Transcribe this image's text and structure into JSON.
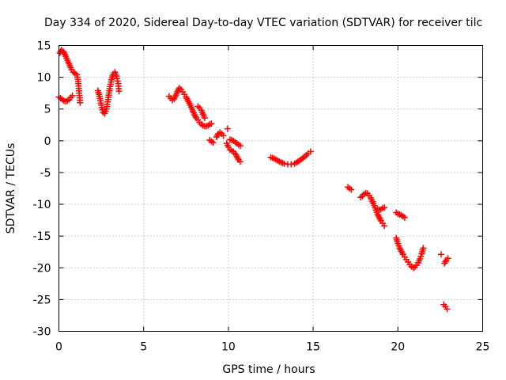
{
  "chart_data": {
    "type": "scatter",
    "title": "Day 334 of 2020, Sidereal Day-to-day VTEC variation (SDTVAR) for receiver tilc",
    "xlabel": "GPS time / hours",
    "ylabel": "SDTVAR / TECUs",
    "xlim": [
      0,
      25
    ],
    "ylim": [
      -30,
      15
    ],
    "xticks": [
      0,
      5,
      10,
      15,
      20,
      25
    ],
    "yticks": [
      15,
      10,
      5,
      0,
      -5,
      -10,
      -15,
      -20,
      -25,
      -30
    ],
    "xtick_labels": [
      "0",
      "5",
      "10",
      "15",
      "20",
      "25"
    ],
    "ytick_labels": [
      "15",
      "10",
      "5",
      "0",
      "-5",
      "-10",
      "-15",
      "-20",
      "-25",
      "-30"
    ],
    "grid": true,
    "marker": "plus",
    "color": "#ff0000",
    "segments": [
      {
        "x": [
          0.0,
          0.1,
          0.2,
          0.3,
          0.4,
          0.5,
          0.6,
          0.7,
          0.8
        ],
        "y": [
          6.9,
          6.7,
          6.5,
          6.3,
          6.2,
          6.3,
          6.5,
          6.8,
          7.1
        ]
      },
      {
        "x": [
          0.05,
          0.15,
          0.25,
          0.35,
          0.45,
          0.55,
          0.65,
          0.75,
          0.85,
          0.95,
          1.05,
          1.1,
          1.15,
          1.2,
          1.25
        ],
        "y": [
          13.8,
          14.3,
          14.1,
          13.6,
          13.0,
          12.4,
          11.8,
          11.2,
          10.8,
          10.6,
          10.4,
          10.0,
          9.0,
          7.5,
          6.0
        ]
      },
      {
        "x": [
          2.3,
          2.4,
          2.5,
          2.6,
          2.7,
          2.8,
          2.9,
          3.0,
          3.1,
          3.2,
          3.3,
          3.4,
          3.5,
          3.55
        ],
        "y": [
          7.9,
          7.0,
          5.6,
          4.5,
          4.3,
          5.0,
          6.5,
          8.2,
          9.6,
          10.5,
          10.8,
          10.2,
          9.0,
          7.8
        ]
      },
      {
        "x": [
          6.5,
          6.6,
          6.7,
          6.8,
          6.9,
          7.0,
          7.1,
          7.2,
          7.3,
          7.4,
          7.5,
          7.6,
          7.7,
          7.8,
          7.9,
          8.0,
          8.1,
          8.2,
          8.3,
          8.4,
          8.5,
          8.6,
          8.7,
          8.8,
          8.9,
          9.0
        ],
        "y": [
          7.0,
          6.7,
          6.4,
          6.6,
          7.2,
          7.8,
          8.3,
          8.1,
          7.7,
          7.3,
          6.9,
          6.4,
          5.9,
          5.3,
          4.7,
          4.1,
          3.6,
          3.3,
          2.9,
          2.6,
          2.4,
          2.3,
          2.3,
          2.4,
          2.6,
          2.7
        ]
      },
      {
        "x": [
          8.2,
          8.3,
          8.4,
          8.5,
          8.6
        ],
        "y": [
          5.4,
          5.2,
          4.8,
          4.2,
          3.6
        ]
      },
      {
        "x": [
          8.9,
          9.0,
          9.1
        ],
        "y": [
          0.1,
          -0.1,
          -0.3
        ]
      },
      {
        "x": [
          9.3,
          9.4,
          9.5,
          9.6,
          9.7
        ],
        "y": [
          0.6,
          1.1,
          1.3,
          1.1,
          0.8
        ]
      },
      {
        "x": [
          9.95
        ],
        "y": [
          1.9
        ]
      },
      {
        "x": [
          9.9,
          10.0,
          10.1,
          10.2,
          10.3,
          10.4,
          10.5,
          10.6,
          10.7
        ],
        "y": [
          -0.4,
          -1.0,
          -1.4,
          -1.6,
          -1.7,
          -2.0,
          -2.5,
          -3.0,
          -3.3
        ]
      },
      {
        "x": [
          10.1,
          10.3,
          10.5,
          10.7
        ],
        "y": [
          0.2,
          0.0,
          -0.4,
          -0.8
        ]
      },
      {
        "x": [
          12.5,
          12.7,
          12.9,
          13.1,
          13.3,
          13.5,
          13.7,
          13.9,
          14.1,
          14.3,
          14.5,
          14.7,
          14.85
        ],
        "y": [
          -2.6,
          -2.8,
          -3.1,
          -3.4,
          -3.6,
          -3.7,
          -3.7,
          -3.6,
          -3.3,
          -2.9,
          -2.5,
          -2.0,
          -1.7
        ]
      },
      {
        "x": [
          17.05,
          17.15,
          17.25
        ],
        "y": [
          -7.3,
          -7.5,
          -7.7
        ]
      },
      {
        "x": [
          17.8,
          17.9,
          18.0,
          18.1,
          18.2,
          18.3,
          18.4,
          18.5,
          18.6,
          18.7,
          18.8,
          18.9,
          19.0,
          19.1,
          19.2
        ],
        "y": [
          -8.9,
          -8.7,
          -8.4,
          -8.2,
          -8.3,
          -8.6,
          -9.0,
          -9.6,
          -10.2,
          -10.9,
          -11.6,
          -12.1,
          -12.6,
          -13.0,
          -13.4
        ]
      },
      {
        "x": [
          18.8,
          18.9,
          19.0,
          19.1,
          19.2
        ],
        "y": [
          -10.7,
          -10.9,
          -10.8,
          -10.6,
          -10.5
        ]
      },
      {
        "x": [
          19.9,
          20.0,
          20.1,
          20.2,
          20.3,
          20.4
        ],
        "y": [
          -11.3,
          -11.5,
          -11.6,
          -11.7,
          -11.9,
          -12.1
        ]
      },
      {
        "x": [
          19.9,
          20.0,
          20.1,
          20.2,
          20.3,
          20.4,
          20.5,
          20.6,
          20.7,
          20.8,
          20.9,
          21.0,
          21.1,
          21.2,
          21.3,
          21.4,
          21.5
        ],
        "y": [
          -15.3,
          -16.2,
          -16.9,
          -17.4,
          -17.9,
          -18.3,
          -18.7,
          -19.1,
          -19.5,
          -19.8,
          -20.0,
          -19.9,
          -19.6,
          -19.2,
          -18.6,
          -17.8,
          -16.9
        ]
      },
      {
        "x": [
          22.55
        ],
        "y": [
          -17.9
        ]
      },
      {
        "x": [
          22.75,
          22.85,
          22.95
        ],
        "y": [
          -19.3,
          -18.8,
          -18.5
        ]
      },
      {
        "x": [
          22.7,
          22.8,
          22.9
        ],
        "y": [
          -25.8,
          -26.1,
          -26.5
        ]
      }
    ]
  }
}
